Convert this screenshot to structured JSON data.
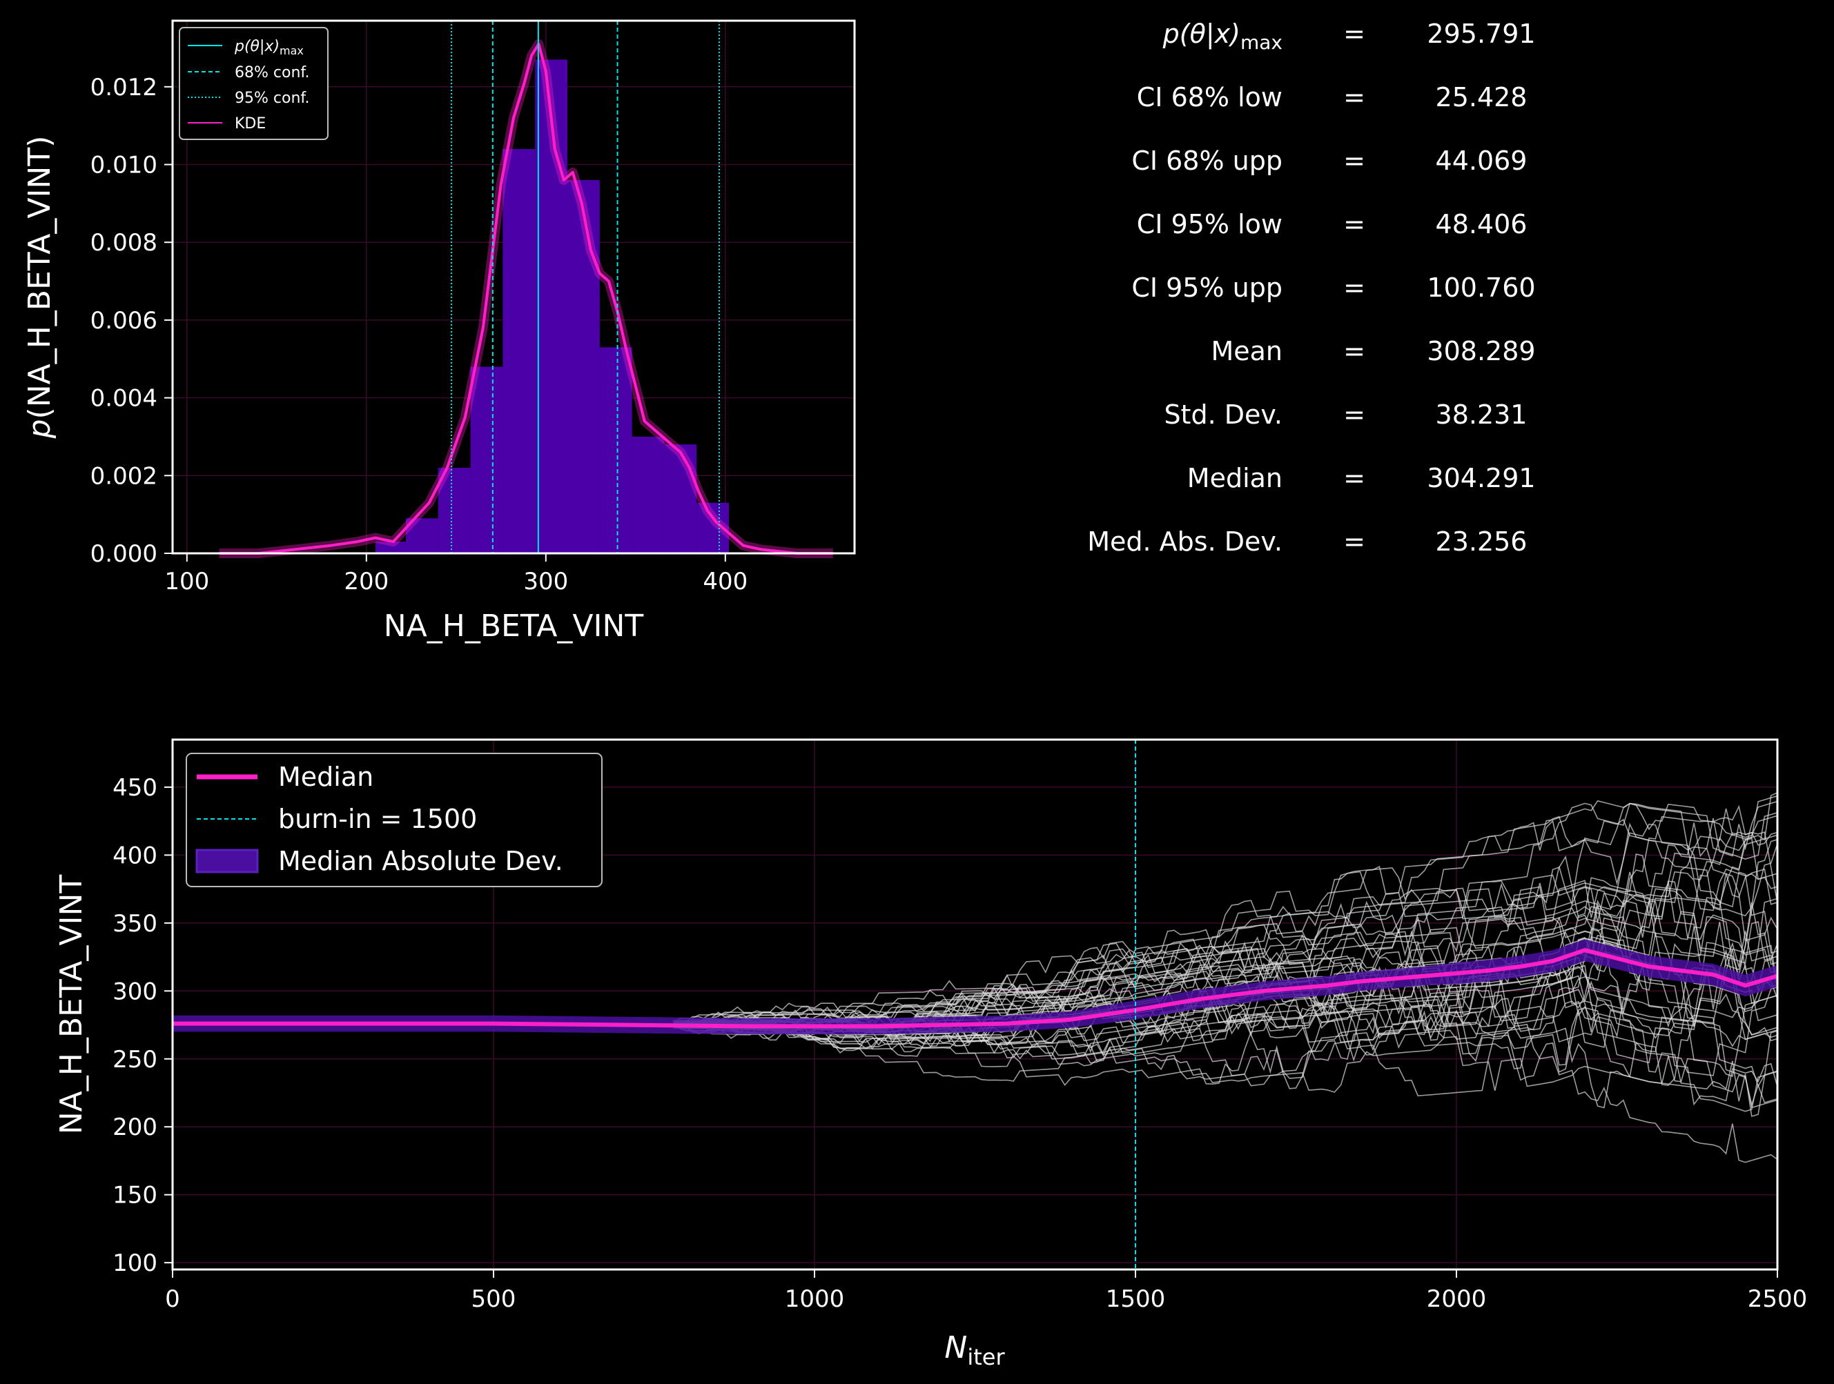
{
  "colors": {
    "background": "#000000",
    "axes": "#ffffff",
    "histogram": "#4b00a8",
    "kde": "#ff1fc8",
    "conf": "#00e5e5",
    "grid": "#3a0a2a",
    "chains": "#dddddd",
    "mad_band": "#4b0fa0"
  },
  "chart_data": [
    {
      "type": "bar",
      "xlabel": "NA_H_BETA_VINT",
      "ylabel_prefix": "p",
      "ylabel": "(NA_H_BETA_VINT)",
      "xlim": [
        92,
        472
      ],
      "ylim": [
        0,
        0.0137
      ],
      "xticks": [
        100,
        200,
        300,
        400
      ],
      "yticks": [
        0.0,
        0.002,
        0.004,
        0.006,
        0.008,
        0.01,
        0.012
      ],
      "ytick_labels": [
        "0.000",
        "0.002",
        "0.004",
        "0.006",
        "0.008",
        "0.010",
        "0.012"
      ],
      "bins": [
        {
          "x0": 205,
          "x1": 222,
          "y": 0.0003
        },
        {
          "x0": 222,
          "x1": 240,
          "y": 0.0009
        },
        {
          "x0": 240,
          "x1": 258,
          "y": 0.0022
        },
        {
          "x0": 258,
          "x1": 276,
          "y": 0.0048
        },
        {
          "x0": 276,
          "x1": 294,
          "y": 0.0104
        },
        {
          "x0": 294,
          "x1": 312,
          "y": 0.0127
        },
        {
          "x0": 312,
          "x1": 330,
          "y": 0.0096
        },
        {
          "x0": 330,
          "x1": 348,
          "y": 0.0053
        },
        {
          "x0": 348,
          "x1": 366,
          "y": 0.003
        },
        {
          "x0": 366,
          "x1": 384,
          "y": 0.0028
        },
        {
          "x0": 384,
          "x1": 402,
          "y": 0.0013
        }
      ],
      "kde_x": [
        118,
        140,
        160,
        180,
        195,
        205,
        215,
        225,
        235,
        245,
        255,
        265,
        275,
        282,
        288,
        292,
        296,
        300,
        305,
        310,
        315,
        320,
        325,
        330,
        335,
        340,
        345,
        350,
        355,
        360,
        365,
        370,
        375,
        380,
        385,
        390,
        395,
        400,
        410,
        420,
        440,
        460
      ],
      "kde_y": [
        0.0,
        0.0,
        0.0001,
        0.0002,
        0.0003,
        0.0004,
        0.0003,
        0.0008,
        0.0013,
        0.0022,
        0.0035,
        0.0058,
        0.0095,
        0.0112,
        0.0121,
        0.0128,
        0.0131,
        0.0124,
        0.0104,
        0.0096,
        0.0098,
        0.009,
        0.0078,
        0.0072,
        0.007,
        0.0062,
        0.0052,
        0.0043,
        0.0034,
        0.0032,
        0.003,
        0.0028,
        0.0026,
        0.0022,
        0.0016,
        0.0011,
        0.0008,
        0.0006,
        0.0002,
        0.0001,
        0.0,
        0.0
      ],
      "pmax_x": 295.791,
      "conf68": [
        270.4,
        339.9
      ],
      "conf95": [
        247.4,
        396.6
      ],
      "legend": [
        {
          "name_tex": "p(θ|x)",
          "name_sub": "max",
          "style": "solid"
        },
        {
          "name": "68% conf.",
          "style": "dashed"
        },
        {
          "name": "95% conf.",
          "style": "dotted"
        },
        {
          "name": "KDE",
          "style": "kde"
        }
      ],
      "legend_position": "upper-left",
      "grid": true
    },
    {
      "type": "line",
      "xlabel_main": "N",
      "xlabel_sub": "iter",
      "ylabel": "NA_H_BETA_VINT",
      "xlim": [
        0,
        2500
      ],
      "ylim": [
        95,
        485
      ],
      "xticks": [
        0,
        500,
        1000,
        1500,
        2000,
        2500
      ],
      "yticks": [
        100,
        150,
        200,
        250,
        300,
        350,
        400,
        450
      ],
      "burn_in": 1500,
      "median_x": [
        0,
        300,
        500,
        700,
        900,
        1100,
        1300,
        1400,
        1500,
        1600,
        1700,
        1800,
        1850,
        1900,
        1950,
        2000,
        2050,
        2100,
        2150,
        2200,
        2250,
        2300,
        2350,
        2400,
        2450,
        2500
      ],
      "median_y": [
        276,
        276,
        276,
        275,
        274,
        274,
        276,
        279,
        286,
        294,
        300,
        304,
        307,
        309,
        311,
        313,
        315,
        318,
        322,
        330,
        324,
        318,
        315,
        312,
        304,
        311
      ],
      "mad_half_width": [
        6,
        6,
        6,
        6,
        6,
        6,
        6,
        6,
        7,
        7,
        7,
        7,
        7,
        7,
        7,
        8,
        8,
        8,
        8,
        8,
        8,
        8,
        8,
        8,
        8,
        8
      ],
      "legend": [
        {
          "name": "Median",
          "style": "thick"
        },
        {
          "name": "burn-in = 1500",
          "style": "dashed"
        },
        {
          "name": "Median Absolute Dev.",
          "style": "patch"
        }
      ],
      "legend_position": "upper-left",
      "grid": true
    }
  ],
  "stats": [
    {
      "label_tex": "p(θ|x)",
      "label_sub": "max",
      "eq": "=",
      "value": "295.791"
    },
    {
      "label": "CI 68% low",
      "eq": "=",
      "value": "25.428"
    },
    {
      "label": "CI 68% upp",
      "eq": "=",
      "value": "44.069"
    },
    {
      "label": "CI 95% low",
      "eq": "=",
      "value": "48.406"
    },
    {
      "label": "CI 95% upp",
      "eq": "=",
      "value": "100.760"
    },
    {
      "label": "Mean",
      "eq": "=",
      "value": "308.289"
    },
    {
      "label": "Std.  Dev.",
      "eq": "=",
      "value": "38.231"
    },
    {
      "label": "Median",
      "eq": "=",
      "value": "304.291"
    },
    {
      "label": "Med. Abs. Dev.",
      "eq": "=",
      "value": "23.256"
    }
  ]
}
